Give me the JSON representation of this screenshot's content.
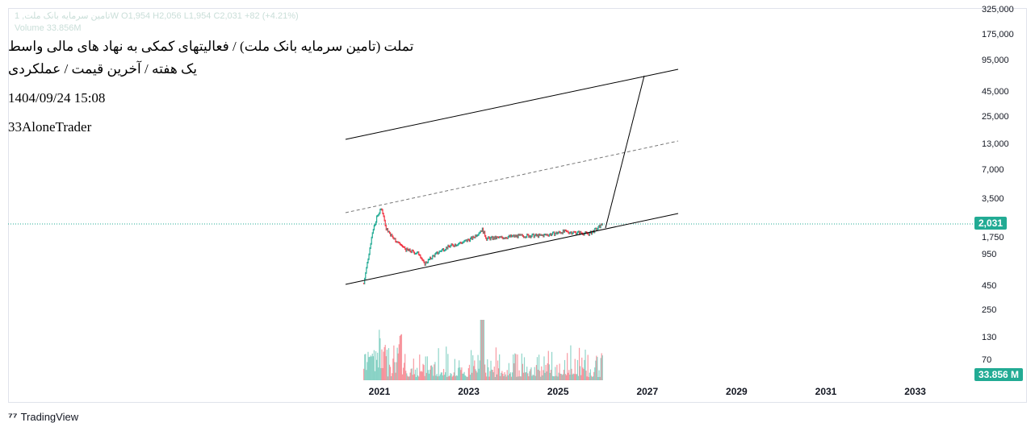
{
  "legend": {
    "symbol": "تامین سرمایه بانک ملت, 1W",
    "open": "O1,954",
    "high": "H2,056",
    "low": "L1,954",
    "close": "C2,031",
    "change": "+82 (+4.21%)",
    "volume": "Volume 33.856M"
  },
  "overlay": {
    "title": "تملت (تامین سرمایه بانک ملت) / فعالیتهای کمکی به نهاد های مالی واسط",
    "subtitle": "یک هفته / آخرین قیمت / عملکردی",
    "datetime": "1404/09/24 15:08",
    "author": "33AloneTrader"
  },
  "price_axis": [
    "325,000",
    "175,000",
    "95,000",
    "45,000",
    "25,000",
    "13,000",
    "7,000",
    "3,500",
    "1,750",
    "950",
    "450",
    "250",
    "130",
    "70"
  ],
  "time_axis": [
    "2021",
    "2023",
    "2025",
    "2027",
    "2029",
    "2031",
    "2033"
  ],
  "last_price": "2,031",
  "last_volume": "33.856 M",
  "colors": {
    "up": "#22ab94",
    "down": "#f23645",
    "price_line": "#22ab94"
  },
  "branding": "TradingView",
  "chart_data": {
    "type": "candlestick",
    "scale": "log",
    "price_series": [
      [
        2020.65,
        480
      ],
      [
        2020.75,
        900
      ],
      [
        2020.85,
        1700
      ],
      [
        2020.95,
        2400
      ],
      [
        2021.05,
        2900
      ],
      [
        2021.15,
        1800
      ],
      [
        2021.3,
        1430
      ],
      [
        2021.6,
        1070
      ],
      [
        2021.9,
        970
      ],
      [
        2022.0,
        760
      ],
      [
        2022.2,
        920
      ],
      [
        2022.4,
        1070
      ],
      [
        2022.6,
        1180
      ],
      [
        2022.9,
        1300
      ],
      [
        2023.1,
        1430
      ],
      [
        2023.3,
        1750
      ],
      [
        2023.4,
        1400
      ],
      [
        2023.7,
        1430
      ],
      [
        2024.0,
        1480
      ],
      [
        2024.3,
        1500
      ],
      [
        2024.6,
        1500
      ],
      [
        2024.9,
        1570
      ],
      [
        2025.1,
        1650
      ],
      [
        2025.4,
        1620
      ],
      [
        2025.7,
        1570
      ],
      [
        2025.9,
        1800
      ],
      [
        2026.0,
        2031
      ]
    ]
  }
}
